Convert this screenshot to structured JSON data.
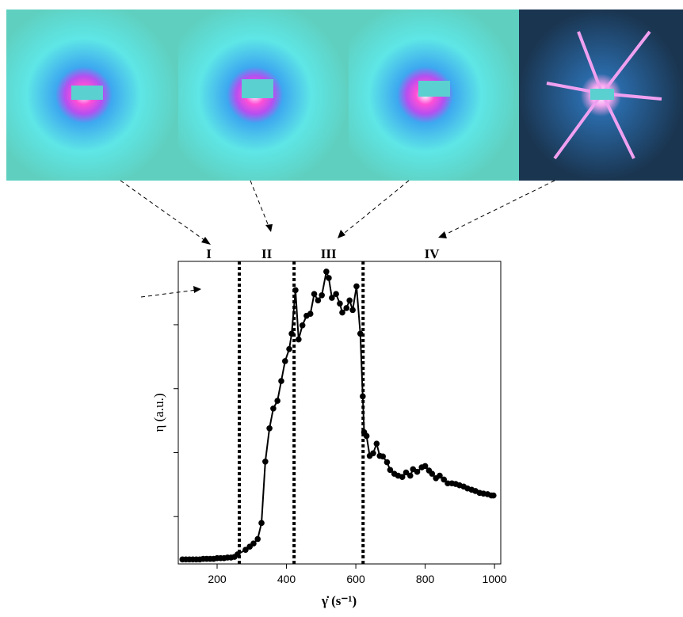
{
  "chart_data": {
    "type": "line",
    "x_label": "γ̇ (s⁻¹)",
    "y_label": "η (a.u.)",
    "xlim": [
      88,
      1018
    ],
    "xticks": [
      200,
      400,
      600,
      800,
      1000
    ],
    "ylim": [
      0.26,
      4.99
    ],
    "yticks": [
      1,
      2,
      3,
      4
    ],
    "regions": [
      "I",
      "II",
      "III",
      "IV"
    ],
    "boundaries": [
      264,
      422,
      621
    ],
    "color": "#000000",
    "x": [
      100,
      110,
      120,
      130,
      140,
      150,
      160,
      170,
      180,
      190,
      200,
      210,
      220,
      230,
      240,
      250,
      259,
      282,
      294,
      305,
      317,
      328,
      339,
      351,
      362,
      374,
      385,
      396,
      408,
      415,
      426,
      435,
      446,
      458,
      469,
      480,
      491,
      502,
      515,
      522,
      531,
      543,
      554,
      561,
      573,
      582,
      591,
      602,
      613,
      620,
      624,
      631,
      640,
      650,
      660,
      669,
      678,
      690,
      699,
      711,
      722,
      734,
      745,
      757,
      765,
      777,
      790,
      800,
      811,
      820,
      831,
      842,
      854,
      865,
      877,
      888,
      899,
      911,
      922,
      934,
      945,
      957,
      968,
      980,
      991,
      997
    ],
    "values": [
      0.33,
      0.33,
      0.33,
      0.33,
      0.33,
      0.33,
      0.34,
      0.34,
      0.34,
      0.34,
      0.35,
      0.35,
      0.35,
      0.36,
      0.36,
      0.37,
      0.41,
      0.48,
      0.53,
      0.58,
      0.65,
      0.9,
      1.86,
      2.38,
      2.69,
      2.81,
      3.12,
      3.43,
      3.62,
      3.86,
      4.54,
      3.77,
      3.99,
      4.14,
      4.17,
      4.48,
      4.38,
      4.46,
      4.83,
      4.73,
      4.42,
      4.48,
      4.33,
      4.19,
      4.26,
      4.38,
      4.23,
      4.6,
      3.86,
      2.88,
      2.32,
      2.26,
      1.95,
      1.99,
      2.14,
      1.95,
      1.94,
      1.85,
      1.73,
      1.67,
      1.64,
      1.62,
      1.69,
      1.64,
      1.74,
      1.7,
      1.77,
      1.79,
      1.72,
      1.67,
      1.6,
      1.64,
      1.58,
      1.52,
      1.52,
      1.51,
      1.49,
      1.47,
      1.44,
      1.42,
      1.4,
      1.37,
      1.36,
      1.35,
      1.33,
      1.33
    ]
  }
}
